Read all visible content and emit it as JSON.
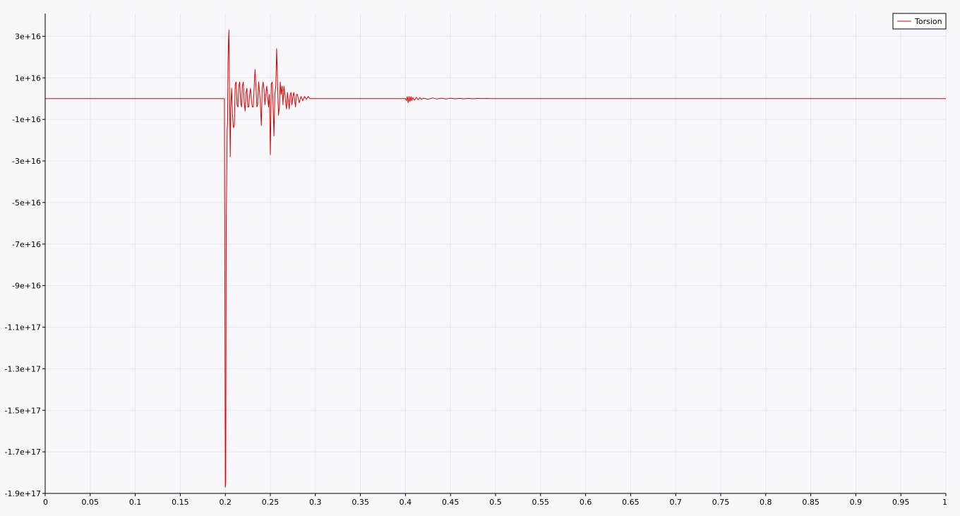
{
  "chart_data": {
    "type": "line",
    "title": "",
    "xlabel": "",
    "ylabel": "",
    "xlim": [
      0,
      1
    ],
    "ylim": [
      -1.9e+17,
      4.1e+16
    ],
    "grid": true,
    "legend_position": "top-right",
    "x_ticks": [
      {
        "value": 0,
        "label": "0"
      },
      {
        "value": 0.05,
        "label": "0.05"
      },
      {
        "value": 0.1,
        "label": "0.1"
      },
      {
        "value": 0.15,
        "label": "0.15"
      },
      {
        "value": 0.2,
        "label": "0.2"
      },
      {
        "value": 0.25,
        "label": "0.25"
      },
      {
        "value": 0.3,
        "label": "0.3"
      },
      {
        "value": 0.35,
        "label": "0.35"
      },
      {
        "value": 0.4,
        "label": "0.4"
      },
      {
        "value": 0.45,
        "label": "0.45"
      },
      {
        "value": 0.5,
        "label": "0.5"
      },
      {
        "value": 0.55,
        "label": "0.55"
      },
      {
        "value": 0.6,
        "label": "0.6"
      },
      {
        "value": 0.65,
        "label": "0.65"
      },
      {
        "value": 0.7,
        "label": "0.7"
      },
      {
        "value": 0.75,
        "label": "0.75"
      },
      {
        "value": 0.8,
        "label": "0.8"
      },
      {
        "value": 0.85,
        "label": "0.85"
      },
      {
        "value": 0.9,
        "label": "0.9"
      },
      {
        "value": 0.95,
        "label": "0.95"
      },
      {
        "value": 1,
        "label": "1"
      }
    ],
    "y_ticks": [
      {
        "value": 3e+16,
        "label": "3e+16"
      },
      {
        "value": 1e+16,
        "label": "1e+16"
      },
      {
        "value": -1e+16,
        "label": "-1e+16"
      },
      {
        "value": -3e+16,
        "label": "-3e+16"
      },
      {
        "value": -5e+16,
        "label": "-5e+16"
      },
      {
        "value": -7e+16,
        "label": "-7e+16"
      },
      {
        "value": -9e+16,
        "label": "-9e+16"
      },
      {
        "value": -1.1e+17,
        "label": "-1.1e+17"
      },
      {
        "value": -1.3e+17,
        "label": "-1.3e+17"
      },
      {
        "value": -1.5e+17,
        "label": "-1.5e+17"
      },
      {
        "value": -1.7e+17,
        "label": "-1.7e+17"
      },
      {
        "value": -1.9e+17,
        "label": "-1.9e+17"
      }
    ],
    "series": [
      {
        "name": "Torsion",
        "color": "#dd0000",
        "x": [
          0,
          0.199,
          0.2,
          0.2005,
          0.201,
          0.2015,
          0.202,
          0.2025,
          0.203,
          0.2035,
          0.204,
          0.2045,
          0.205,
          0.2055,
          0.206,
          0.207,
          0.208,
          0.209,
          0.21,
          0.211,
          0.212,
          0.213,
          0.214,
          0.215,
          0.216,
          0.217,
          0.218,
          0.219,
          0.22,
          0.221,
          0.222,
          0.223,
          0.224,
          0.225,
          0.226,
          0.227,
          0.228,
          0.229,
          0.23,
          0.231,
          0.232,
          0.233,
          0.234,
          0.235,
          0.236,
          0.237,
          0.238,
          0.239,
          0.24,
          0.241,
          0.242,
          0.243,
          0.244,
          0.245,
          0.246,
          0.247,
          0.248,
          0.249,
          0.25,
          0.251,
          0.252,
          0.253,
          0.254,
          0.255,
          0.256,
          0.257,
          0.258,
          0.259,
          0.26,
          0.261,
          0.262,
          0.263,
          0.264,
          0.265,
          0.266,
          0.267,
          0.268,
          0.269,
          0.27,
          0.271,
          0.272,
          0.273,
          0.274,
          0.275,
          0.276,
          0.277,
          0.278,
          0.279,
          0.28,
          0.282,
          0.284,
          0.286,
          0.288,
          0.29,
          0.292,
          0.294,
          0.296,
          0.298,
          0.3,
          0.4,
          0.401,
          0.402,
          0.403,
          0.404,
          0.405,
          0.406,
          0.407,
          0.408,
          0.41,
          0.412,
          0.414,
          0.416,
          0.418,
          0.42,
          0.425,
          0.43,
          0.435,
          0.44,
          0.445,
          0.45,
          0.455,
          0.46,
          0.465,
          0.47,
          0.475,
          0.48,
          0.485,
          0.49,
          0.495,
          0.5,
          1
        ],
        "y": [
          0,
          0,
          -1.87e+17,
          -1.85e+17,
          -6e+16,
          -4e+16,
          -1.5e+16,
          -1.2e+16,
          1.8e+16,
          2.8e+16,
          3.3e+16,
          1e+16,
          -8000000000000000.0,
          -2.8e+16,
          -5000000000000000.0,
          5000000000000000.0,
          -8000000000000000.0,
          -1.4e+16,
          -1.3e+16,
          7000000000000000.0,
          8000000000000000.0,
          -3000000000000000.0,
          -4000000000000000.0,
          6000000000000000.0,
          8000000000000000.0,
          -2000000000000000.0,
          -4000000000000000.0,
          6000000000000000.0,
          8000000000000000.0,
          -2000000000000000.0,
          -6000000000000000.0,
          3000000000000000.0,
          5000000000000000.0,
          -4000000000000000.0,
          -4000000000000000.0,
          2000000000000000.0,
          5000000000000000.0,
          -1000000000000000.0,
          -4000000000000000.0,
          -4000000000000000.0,
          5000000000000000.0,
          1.4e+16,
          6000000000000000.0,
          -4000000000000000.0,
          -3000000000000000.0,
          8000000000000000.0,
          3000000000000000.0,
          -3000000000000000.0,
          -1.3e+16,
          5000000000000000.0,
          8000000000000000.0,
          4000000000000000.0,
          -3000000000000000.0,
          2000000000000000.0,
          6000000000000000.0,
          1000000000000000.0,
          -4000000000000000.0,
          2000000000000000.0,
          -2.7e+16,
          7000000000000000.0,
          8000000000000000.0,
          -2000000000000000.0,
          -1.8e+16,
          2000000000000000.0,
          6000000000000000.0,
          2.4e+16,
          8000000000000000.0,
          -8000000000000000.0,
          -4000000000000000.0,
          8000000000000000.0,
          2000000000000000.0,
          6000000000000000.0,
          -3000000000000000.0,
          6000000000000000.0,
          3000000000000000.0,
          -2000000000000000.0,
          -5000000000000000.0,
          3000000000000000.0,
          -1000000000000000.0,
          -5000000000000000.0,
          2000000000000000.0,
          3000000000000000.0,
          -3000000000000000.0,
          1000000000000000.0,
          3000000000000000.0,
          -1000000000000000.0,
          -4000000000000000.0,
          2000000000000000.0,
          2000000000000000.0,
          -2000000000000000.0,
          1000000000000000.0,
          -1000000000000000.0,
          1000000000000000.0,
          -300000000000000.0,
          1000000000000000.0,
          0,
          0,
          0,
          0,
          0,
          -1000000000000000.0,
          1000000000000000.0,
          -2000000000000000.0,
          1000000000000000.0,
          -1500000000000000.0,
          1000000000000000.0,
          -1000000000000000.0,
          500000000000000.0,
          -800000000000000.0,
          600000000000000.0,
          -500000000000000.0,
          400000000000000.0,
          -300000000000000.0,
          200000000000000.0,
          -300000000000000.0,
          300000000000000.0,
          -200000000000000.0,
          200000000000000.0,
          -200000000000000.0,
          200000000000000.0,
          -100000000000000.0,
          100000000000000.0,
          -100000000000000.0,
          100000000000000.0,
          -100000000000000.0,
          100000000000000.0,
          -50000000000000.0,
          50000000000000.0,
          0,
          0,
          0
        ]
      }
    ]
  }
}
